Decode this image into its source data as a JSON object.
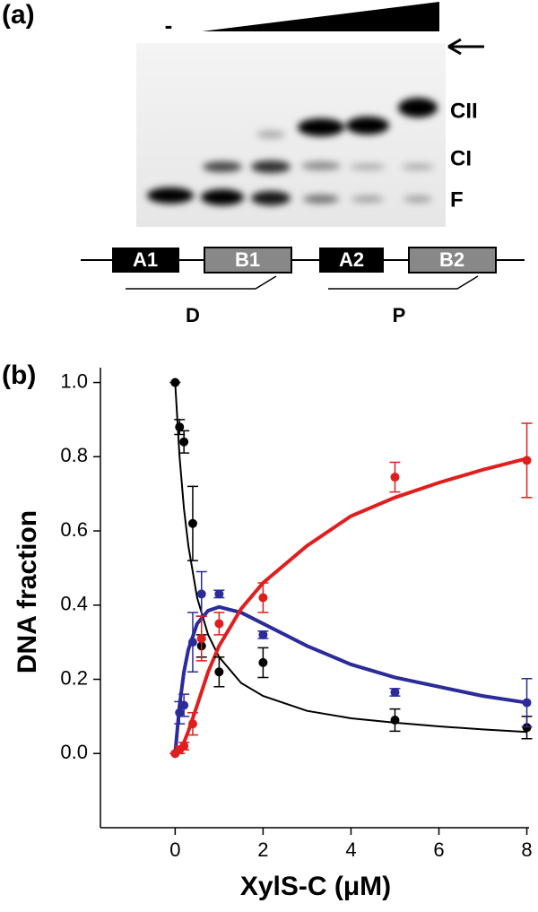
{
  "panel_a": {
    "label": "(a)",
    "minus": "-",
    "band_labels": [
      "CII",
      "CI",
      "F"
    ],
    "boxes": [
      "A1",
      "B1",
      "A2",
      "B2"
    ],
    "regions": [
      "D",
      "P"
    ]
  },
  "chart_data": {
    "type": "scatter",
    "panel_label": "(b)",
    "x_label": "XylS-C (μM)",
    "y_label": "DNA fraction",
    "x": [
      0,
      0.1,
      0.2,
      0.4,
      0.6,
      1,
      2,
      5,
      8
    ],
    "series": [
      {
        "color": "#000000",
        "values": [
          1.0,
          0.88,
          0.84,
          0.62,
          0.29,
          0.22,
          0.245,
          0.09,
          0.07
        ],
        "errors": [
          0,
          0.02,
          0.03,
          0.1,
          0.03,
          0.04,
          0.04,
          0.03,
          0.03
        ],
        "fit": [
          1.0,
          0.8,
          0.66,
          0.56,
          0.42,
          0.32,
          0.26,
          0.19,
          0.155,
          0.115,
          0.095,
          0.083,
          0.073,
          0.065,
          0.058
        ]
      },
      {
        "color": "#2b2b9a",
        "values": [
          0,
          0.11,
          0.13,
          0.3,
          0.43,
          0.43,
          0.32,
          0.165,
          0.137
        ],
        "errors": [
          0,
          0.03,
          0.03,
          0.08,
          0.06,
          0.01,
          0.01,
          0.01,
          0.065
        ],
        "fit": [
          0,
          0.13,
          0.22,
          0.28,
          0.35,
          0.385,
          0.395,
          0.38,
          0.35,
          0.29,
          0.24,
          0.205,
          0.18,
          0.155,
          0.137
        ]
      },
      {
        "color": "#e01e1e",
        "values": [
          0,
          0.01,
          0.02,
          0.08,
          0.31,
          0.35,
          0.42,
          0.745,
          0.79
        ],
        "errors": [
          0,
          0.01,
          0.01,
          0.03,
          0.06,
          0.03,
          0.04,
          0.04,
          0.1
        ],
        "fit": [
          0,
          0.01,
          0.03,
          0.06,
          0.13,
          0.22,
          0.29,
          0.39,
          0.46,
          0.56,
          0.64,
          0.69,
          0.73,
          0.765,
          0.795
        ]
      }
    ],
    "fit_x": [
      0,
      0.1,
      0.2,
      0.3,
      0.5,
      0.75,
      1,
      1.5,
      2,
      3,
      4,
      5,
      6,
      7,
      8
    ],
    "xlim": [
      -1.7,
      8.05
    ],
    "ylim": [
      -0.2,
      1.04
    ],
    "xticks": [
      0,
      2,
      4,
      6,
      8
    ],
    "yticks": [
      {
        "value": 0,
        "label": "0.0"
      },
      0.2,
      0.4,
      0.6,
      0.8,
      {
        "value": 1,
        "label": "1.0"
      }
    ]
  }
}
